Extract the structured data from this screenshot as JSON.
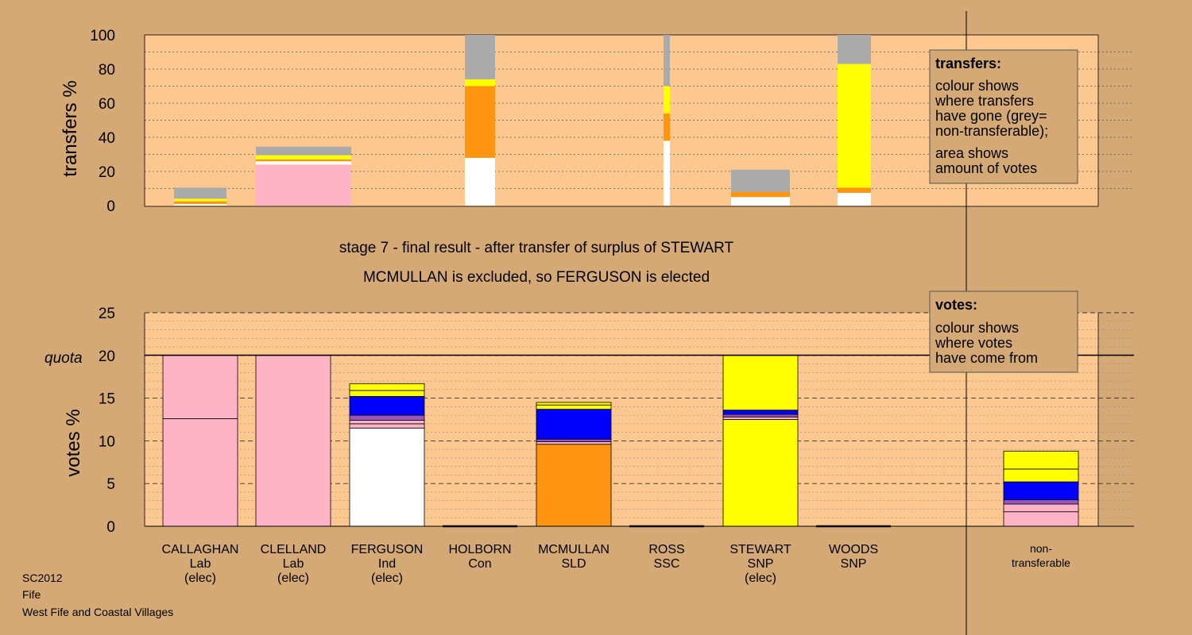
{
  "region": {
    "election": "SC2012",
    "council": "Fife",
    "ward": "West Fife and Coastal Villages"
  },
  "headline": {
    "line1": "stage 7 - final result - after transfer of surplus of STEWART",
    "line2": "MCMULLAN is excluded, so FERGUSON is elected"
  },
  "colors": {
    "background": "#d4a975",
    "panel": "#fdc890",
    "Lab": "#ffb3c6",
    "Ind": "#ffffff",
    "Con": "#0000ff",
    "SLD": "#ff9410",
    "SSC": "#9955bb",
    "SNP": "#ffff00",
    "nontransferable": "#aaaaaa"
  },
  "legend_transfers": {
    "title": "transfers:",
    "line1": "colour shows",
    "line2": "where transfers",
    "line3": "have gone (grey=",
    "line4": "non-transferable);",
    "line5": "area shows",
    "line6": "amount of votes"
  },
  "legend_votes": {
    "title": "votes:",
    "line1": "colour shows",
    "line2": "where votes",
    "line3": "have come from"
  },
  "chart_data": [
    {
      "id": "transfers",
      "type": "bar",
      "stacked": true,
      "ylabel": "transfers %",
      "ylim": [
        0,
        100
      ],
      "yticks": [
        0,
        20,
        40,
        60,
        80,
        100
      ],
      "grid": true,
      "note": "bar width proportional to votes transferred",
      "categories": [
        "CALLAGHAN",
        "CLELLAND",
        "FERGUSON",
        "HOLBORN",
        "MCMULLAN",
        "ROSS",
        "STEWART",
        "WOODS"
      ],
      "bars": [
        {
          "category": "CALLAGHAN",
          "segments": [
            {
              "to": "Ind",
              "value": 1.0
            },
            {
              "to": "SLD",
              "value": 1.5
            },
            {
              "to": "SNP",
              "value": 1.5
            },
            {
              "to": "nontransferable",
              "value": 6.5
            }
          ]
        },
        {
          "category": "CLELLAND",
          "segments": [
            {
              "to": "Lab",
              "value": 24
            },
            {
              "to": "Ind",
              "value": 2
            },
            {
              "to": "SLD",
              "value": 1
            },
            {
              "to": "SNP",
              "value": 2.5
            },
            {
              "to": "nontransferable",
              "value": 5
            }
          ]
        },
        {
          "category": "HOLBORN",
          "segments": [
            {
              "to": "Ind",
              "value": 28
            },
            {
              "to": "SLD",
              "value": 42
            },
            {
              "to": "SNP",
              "value": 4
            },
            {
              "to": "nontransferable",
              "value": 26
            }
          ]
        },
        {
          "category": "ROSS",
          "segments": [
            {
              "to": "Ind",
              "value": 38
            },
            {
              "to": "SLD",
              "value": 16
            },
            {
              "to": "SNP",
              "value": 16
            },
            {
              "to": "nontransferable",
              "value": 30
            }
          ]
        },
        {
          "category": "STEWART",
          "segments": [
            {
              "to": "Ind",
              "value": 5
            },
            {
              "to": "SLD",
              "value": 3
            },
            {
              "to": "nontransferable",
              "value": 13
            }
          ]
        },
        {
          "category": "WOODS",
          "segments": [
            {
              "to": "Ind",
              "value": 7.5
            },
            {
              "to": "SLD",
              "value": 3
            },
            {
              "to": "SNP",
              "value": 72.5
            },
            {
              "to": "nontransferable",
              "value": 17
            }
          ]
        }
      ]
    },
    {
      "id": "votes",
      "type": "bar",
      "stacked": true,
      "ylabel": "votes %",
      "ylim": [
        0,
        25
      ],
      "yticks": [
        0,
        5,
        10,
        15,
        20,
        25
      ],
      "quota": 20,
      "quota_label": "quota",
      "grid": true,
      "candidates": [
        {
          "name": "CALLAGHAN",
          "party": "Lab",
          "status": "(elec)",
          "segments": [
            {
              "from": "Lab",
              "value": 12.6
            },
            {
              "from": "Lab",
              "value": 7.4
            }
          ]
        },
        {
          "name": "CLELLAND",
          "party": "Lab",
          "status": "(elec)",
          "segments": [
            {
              "from": "Lab",
              "value": 20
            }
          ]
        },
        {
          "name": "FERGUSON",
          "party": "Ind",
          "status": "(elec)",
          "segments": [
            {
              "from": "Ind",
              "value": 11.5
            },
            {
              "from": "Lab",
              "value": 0.5
            },
            {
              "from": "Lab",
              "value": 0.4
            },
            {
              "from": "SSC",
              "value": 0.6
            },
            {
              "from": "Con",
              "value": 2.2
            },
            {
              "from": "SNP",
              "value": 0.7
            },
            {
              "from": "SNP",
              "value": 0.8
            }
          ]
        },
        {
          "name": "HOLBORN",
          "party": "Con",
          "status": "",
          "segments": []
        },
        {
          "name": "MCMULLAN",
          "party": "SLD",
          "status": "",
          "segments": [
            {
              "from": "SLD",
              "value": 9.6
            },
            {
              "from": "Lab",
              "value": 0.3
            },
            {
              "from": "SSC",
              "value": 0.3
            },
            {
              "from": "Con",
              "value": 3.5
            },
            {
              "from": "SNP",
              "value": 0.5
            },
            {
              "from": "SNP",
              "value": 0.3
            }
          ]
        },
        {
          "name": "ROSS",
          "party": "SSC",
          "status": "",
          "segments": []
        },
        {
          "name": "STEWART",
          "party": "SNP",
          "status": "(elec)",
          "segments": [
            {
              "from": "SNP",
              "value": 12.5
            },
            {
              "from": "Lab",
              "value": 0.3
            },
            {
              "from": "SSC",
              "value": 0.3
            },
            {
              "from": "Con",
              "value": 0.5
            },
            {
              "from": "SNP",
              "value": 6.4
            }
          ]
        },
        {
          "name": "WOODS",
          "party": "SNP",
          "status": "",
          "segments": []
        },
        {
          "name": "non-",
          "party": "transferable",
          "status": "",
          "segments": [
            {
              "from": "Lab",
              "value": 1.7
            },
            {
              "from": "Lab",
              "value": 0.9
            },
            {
              "from": "SSC",
              "value": 0.5
            },
            {
              "from": "Con",
              "value": 2.1
            },
            {
              "from": "SNP",
              "value": 1.5
            },
            {
              "from": "SNP",
              "value": 2.1
            }
          ]
        }
      ]
    }
  ]
}
